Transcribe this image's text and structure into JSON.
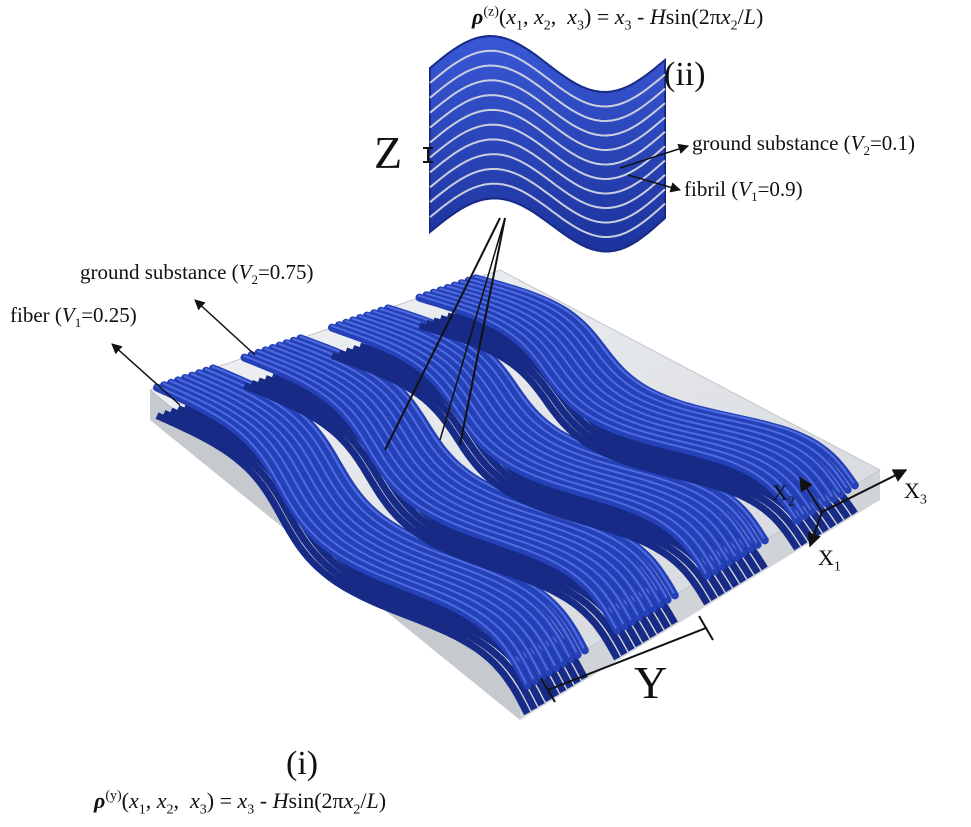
{
  "equation_top": {
    "rho": "ρ",
    "sup": "(z)",
    "x1": "x",
    "s1": "1",
    "x2": "x",
    "s2": "2",
    "x3": "x",
    "s3": "3",
    "rhs_x": "x",
    "rhs_s3": "3",
    "minus": "-",
    "H": "H",
    "sin": "sin(2π",
    "x2b": "x",
    "s2b": "2",
    "slash": "/",
    "L": "L",
    "close": ")"
  },
  "equation_bottom": {
    "rho": "ρ",
    "sup": "(y)",
    "x1": "x",
    "s1": "1",
    "x2": "x",
    "s2": "2",
    "x3": "x",
    "s3": "3",
    "rhs_x": "x",
    "rhs_s3": "3",
    "minus": "-",
    "H": "H",
    "sin": "sin(2π",
    "x2b": "x",
    "s2b": "2",
    "slash": "/",
    "L": "L",
    "close": ")"
  },
  "labels": {
    "ii": "(ii)",
    "i": "(i)",
    "Z": "Z",
    "Y": "Y",
    "ground_fine_pre": "ground substance (",
    "ground_fine_V": "V",
    "ground_fine_sub": "2",
    "ground_fine_val": "=0.1)",
    "fibril_pre": "fibril (",
    "fibril_V": "V",
    "fibril_sub": "1",
    "fibril_val": "=0.9)",
    "ground_coarse_pre": "ground substance (",
    "ground_coarse_V": "V",
    "ground_coarse_sub": "2",
    "ground_coarse_val": "=0.75)",
    "fiber_pre": "fiber (",
    "fiber_V": "V",
    "fiber_sub": "1",
    "fiber_val": "=0.25)"
  },
  "axes": {
    "X": "X",
    "s1": "1",
    "s2": "2",
    "s3": "3"
  },
  "colors": {
    "fiber": "#2541b8",
    "fiber_dark": "#162a86",
    "fiber_light": "#4f6be0",
    "matrix": "#d9dde3",
    "matrix_edge": "#b8bcc4"
  }
}
